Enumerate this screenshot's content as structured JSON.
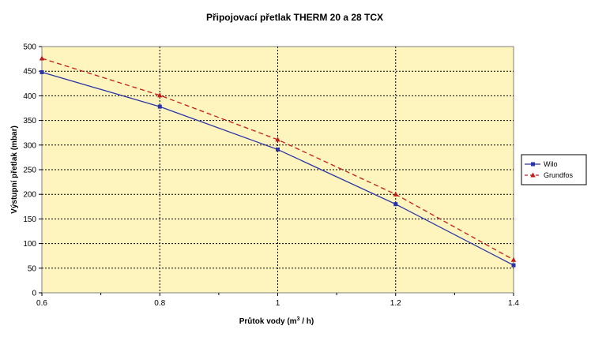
{
  "chart_data": {
    "type": "line",
    "title": "Připojovací přetlak THERM 20 a 28 TCX",
    "xlabel_main": "Průtok vody (m",
    "xlabel_sup": "3",
    "xlabel_end": " / h)",
    "ylabel": "Výstupní přetlak (mbar)",
    "x_ticks": [
      "0.6",
      "0.8",
      "1",
      "1.2",
      "1.4"
    ],
    "y_ticks": [
      "0",
      "50",
      "100",
      "150",
      "200",
      "250",
      "300",
      "350",
      "400",
      "450",
      "500"
    ],
    "xlim": [
      0.6,
      1.4
    ],
    "ylim": [
      0,
      500
    ],
    "grid": true,
    "legend_position": "right",
    "colors": {
      "plot_bg": "#fdf5bd",
      "grid": "#000000"
    },
    "series": [
      {
        "name": "Wilo",
        "color": "#2a33a8",
        "marker": "square",
        "dash": "solid",
        "x": [
          0.6,
          0.8,
          1.0,
          1.2,
          1.4
        ],
        "y": [
          448,
          378,
          291,
          180,
          56
        ]
      },
      {
        "name": "Grundfos",
        "color": "#c41a1a",
        "marker": "triangle",
        "dash": "dashed",
        "x": [
          0.6,
          0.8,
          1.0,
          1.2,
          1.4
        ],
        "y": [
          476,
          401,
          311,
          200,
          67
        ]
      }
    ]
  }
}
